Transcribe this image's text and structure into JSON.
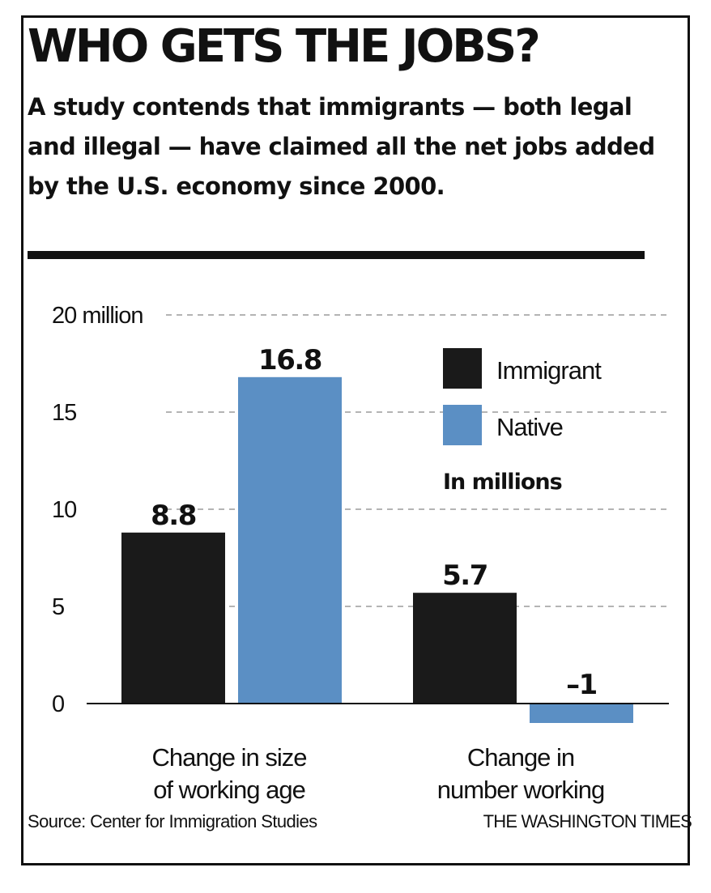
{
  "graphic": {
    "title": "WHO GETS THE JOBS?",
    "subtitle": "A study contends that immigrants — both legal and illegal — have claimed all the net jobs added by the U.S. economy since 2000.",
    "source": "Source: Center for Immigration Studies",
    "credit": "THE WASHINGTON TIMES",
    "units_note": "In millions"
  },
  "chart_data": {
    "type": "bar",
    "title": "WHO GETS THE JOBS?",
    "categories": [
      "Change in size of working age",
      "Change in number working"
    ],
    "category_lines": [
      [
        "Change in size",
        "of working age"
      ],
      [
        "Change in",
        "number working"
      ]
    ],
    "series": [
      {
        "name": "Immigrant",
        "color": "#1a1a1a",
        "values": [
          8.8,
          5.7
        ],
        "labels": [
          "8.8",
          "5.7"
        ]
      },
      {
        "name": "Native",
        "color": "#5b8fc4",
        "values": [
          16.8,
          -1
        ],
        "labels": [
          "16.8",
          "–1"
        ]
      }
    ],
    "y_ticks": [
      0,
      5,
      10,
      15,
      20
    ],
    "y_tick_labels": [
      "0",
      "5",
      "10",
      "15",
      "20 million"
    ],
    "ylim": [
      -1,
      20
    ],
    "grid": "dashed horizontal",
    "legend_position": "top-right",
    "xlabel": "",
    "ylabel": ""
  }
}
